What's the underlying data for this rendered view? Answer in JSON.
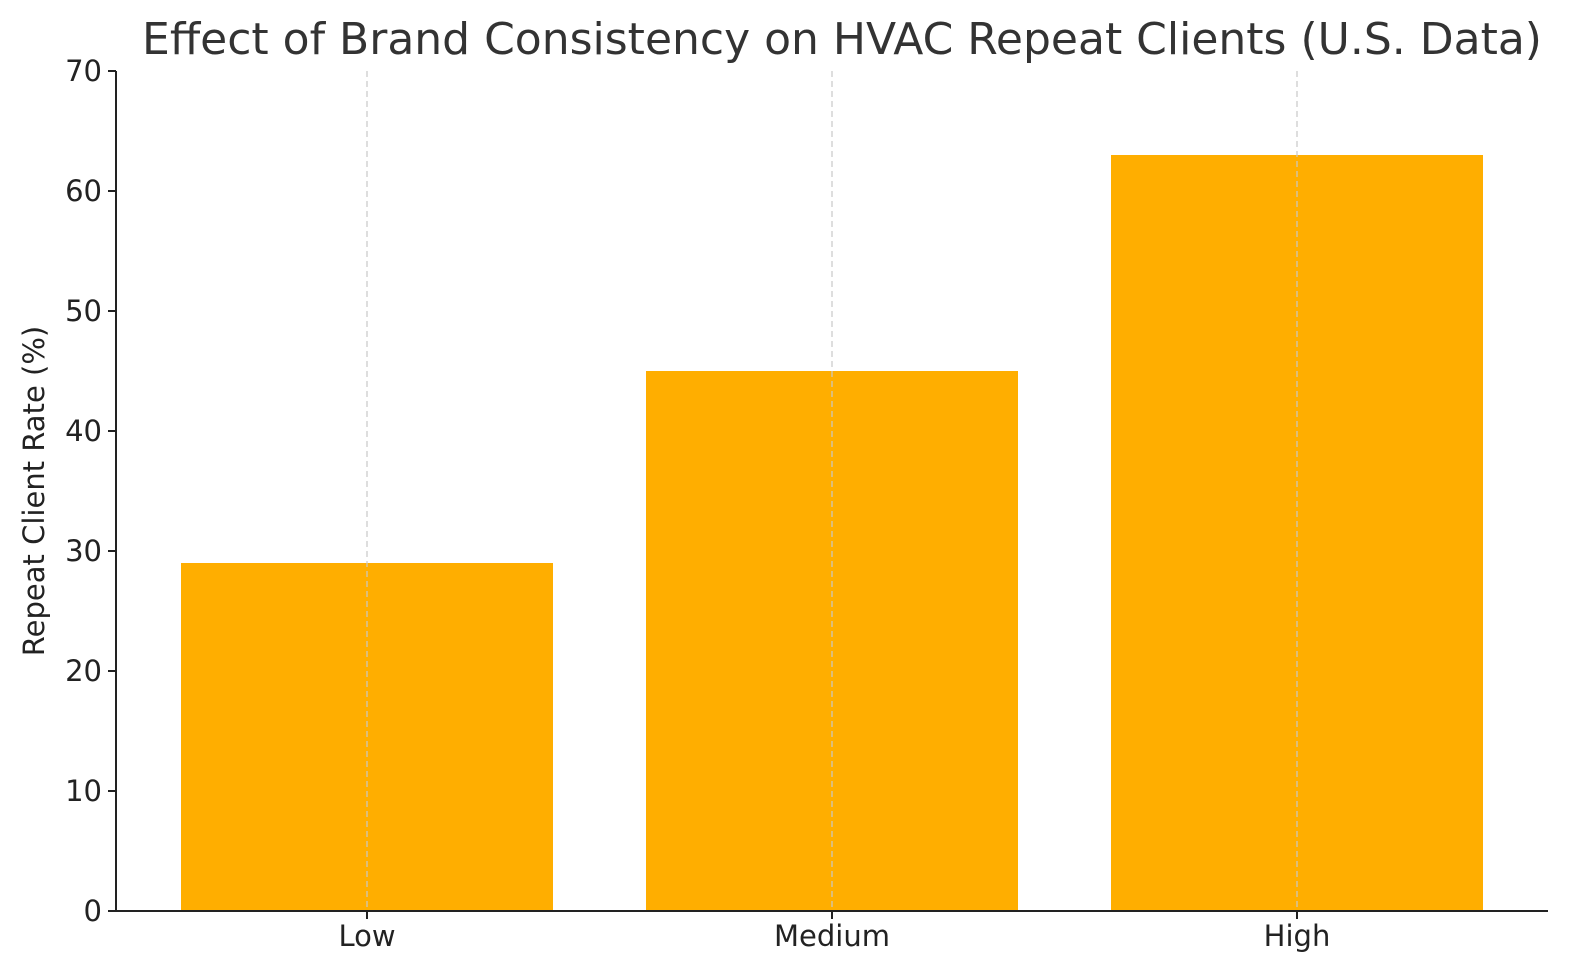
{
  "chart_data": {
    "type": "bar",
    "title": "Effect of Brand Consistency on HVAC Repeat Clients (U.S. Data)",
    "xlabel": "",
    "ylabel": "Repeat Client Rate (%)",
    "categories": [
      "Low",
      "Medium",
      "High"
    ],
    "values": [
      29,
      45,
      63
    ],
    "ylim": [
      0,
      70
    ],
    "yticks": [
      0,
      10,
      20,
      30,
      40,
      50,
      60,
      70
    ],
    "grid": "vertical dashed lines at category positions",
    "bar_color": "#FFAE00"
  }
}
